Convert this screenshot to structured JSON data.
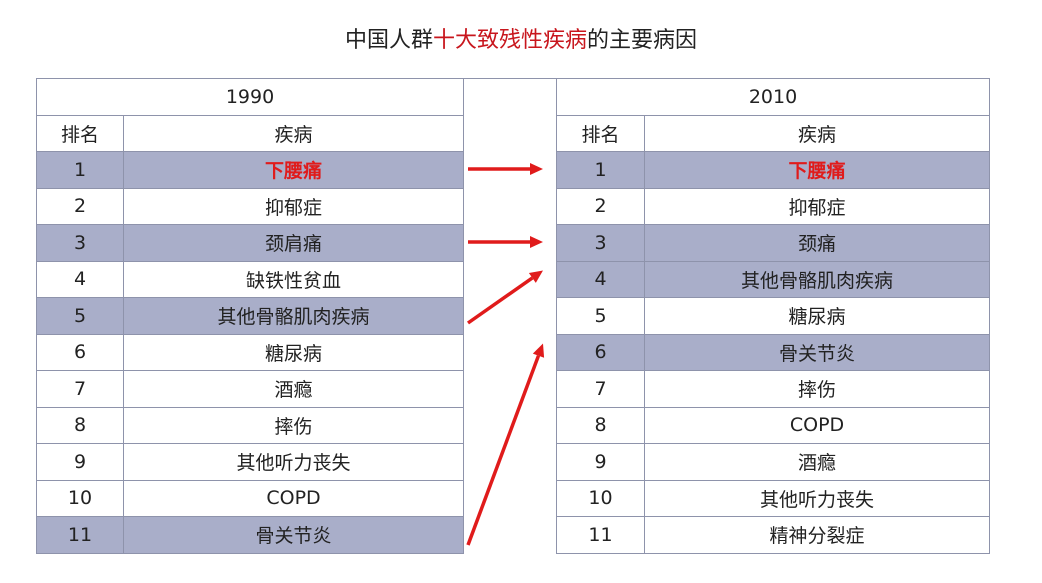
{
  "title": {
    "pre": "中国人群",
    "highlight": "十大致残性疾病",
    "post": "的主要病因"
  },
  "left": {
    "year": "1990",
    "rank_header": "排名",
    "disease_header": "疾病",
    "rows": [
      {
        "rank": "1",
        "name": "下腰痛",
        "highlight": true,
        "red": true
      },
      {
        "rank": "2",
        "name": "抑郁症"
      },
      {
        "rank": "3",
        "name": "颈肩痛",
        "highlight": true
      },
      {
        "rank": "4",
        "name": "缺铁性贫血"
      },
      {
        "rank": "5",
        "name": "其他骨骼肌肉疾病",
        "highlight": true
      },
      {
        "rank": "6",
        "name": "糖尿病"
      },
      {
        "rank": "7",
        "name": "酒瘾"
      },
      {
        "rank": "8",
        "name": "摔伤"
      },
      {
        "rank": "9",
        "name": "其他听力丧失"
      },
      {
        "rank": "10",
        "name": "COPD"
      },
      {
        "rank": "11",
        "name": "骨关节炎",
        "highlight": true
      }
    ]
  },
  "right": {
    "year": "2010",
    "rank_header": "排名",
    "disease_header": "疾病",
    "rows": [
      {
        "rank": "1",
        "name": "下腰痛",
        "highlight": true,
        "red": true
      },
      {
        "rank": "2",
        "name": "抑郁症"
      },
      {
        "rank": "3",
        "name": "颈痛",
        "highlight": true
      },
      {
        "rank": "4",
        "name": "其他骨骼肌肉疾病",
        "highlight": true
      },
      {
        "rank": "5",
        "name": "糖尿病"
      },
      {
        "rank": "6",
        "name": "骨关节炎",
        "highlight": true
      },
      {
        "rank": "7",
        "name": "摔伤"
      },
      {
        "rank": "8",
        "name": "COPD"
      },
      {
        "rank": "9",
        "name": "酒瘾"
      },
      {
        "rank": "10",
        "name": "其他听力丧失"
      },
      {
        "rank": "11",
        "name": "精神分裂症"
      }
    ]
  },
  "arrows": [
    {
      "from": 1,
      "to": 1
    },
    {
      "from": 3,
      "to": 3
    },
    {
      "from": 5,
      "to": 4
    },
    {
      "from": 11,
      "to": 6
    }
  ],
  "colors": {
    "highlight_row": "#a9aec9",
    "arrow": "#e01b1b",
    "title_accent": "#c8161d"
  }
}
